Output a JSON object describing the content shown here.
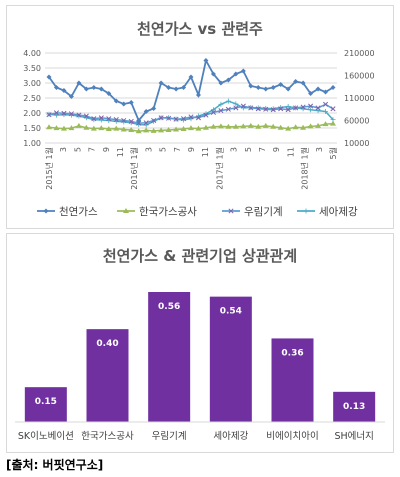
{
  "source": "[출처: 버핏연구소]",
  "colors": {
    "natural_gas": "#4f81bd",
    "korea_gas": "#9bbb59",
    "woorim": "#4bacc6",
    "seah": "#4bacc6",
    "bar": "#7030a0"
  },
  "chart_data": [
    {
      "type": "line",
      "title": "천연가스 vs 관련주",
      "x_tick_labels": [
        "2015년 1월",
        "3",
        "5",
        "7",
        "9",
        "11",
        "2016년 1월",
        "3",
        "5",
        "7",
        "9",
        "11",
        "2017년 1월",
        "3",
        "5",
        "7",
        "9",
        "11",
        "2018년 1월",
        "3",
        "5월"
      ],
      "y_left": {
        "ticks": [
          "4.00",
          "3.50",
          "3.00",
          "2.50",
          "2.00",
          "1.50",
          "1.00"
        ],
        "range": [
          1.0,
          4.0
        ]
      },
      "y_right": {
        "ticks": [
          "210000",
          "160000",
          "110000",
          "60000",
          "10000"
        ],
        "range": [
          10000,
          210000
        ]
      },
      "grid": true,
      "legend_position": "bottom",
      "series": [
        {
          "name": "천연가스",
          "axis": "left",
          "color": "#4f81bd",
          "marker": "diamond",
          "values": [
            3.2,
            2.85,
            2.75,
            2.55,
            3.0,
            2.8,
            2.85,
            2.8,
            2.65,
            2.4,
            2.3,
            2.35,
            1.75,
            2.05,
            2.15,
            3.0,
            2.85,
            2.8,
            2.85,
            3.2,
            2.6,
            3.75,
            3.3,
            3.0,
            3.1,
            3.3,
            3.4,
            2.9,
            2.85,
            2.8,
            2.85,
            2.95,
            2.8,
            3.05,
            3.0,
            2.65,
            2.8,
            2.7,
            2.85
          ]
        },
        {
          "name": "한국가스공사",
          "axis": "right",
          "color": "#9bbb59",
          "marker": "triangle",
          "values": [
            45000,
            43000,
            42000,
            43000,
            48000,
            44000,
            42000,
            43000,
            41000,
            42000,
            40000,
            39000,
            36000,
            38000,
            37000,
            38000,
            39000,
            40000,
            41000,
            43000,
            42000,
            44000,
            46000,
            47000,
            46000,
            46000,
            47000,
            48000,
            46000,
            48000,
            46000,
            44000,
            42000,
            45000,
            44000,
            47000,
            48000,
            52000,
            53000
          ]
        },
        {
          "name": "우림기계",
          "axis": "right",
          "color": "#4bacc6",
          "marker": "x",
          "values": [
            73000,
            77000,
            76000,
            75000,
            72000,
            70000,
            64000,
            66000,
            64000,
            62000,
            60000,
            58000,
            54000,
            55000,
            60000,
            66000,
            65000,
            63000,
            64000,
            68000,
            66000,
            72000,
            78000,
            82000,
            85000,
            88000,
            92000,
            88000,
            86000,
            85000,
            84000,
            86000,
            84000,
            88000,
            90000,
            92000,
            88000,
            96000,
            86000
          ]
        },
        {
          "name": "세아제강",
          "axis": "right",
          "color": "#4bacc6",
          "marker": "star",
          "values": [
            74000,
            72000,
            73000,
            72000,
            70000,
            66000,
            62000,
            61000,
            60000,
            58000,
            57000,
            55000,
            51000,
            50000,
            58000,
            66000,
            66000,
            63000,
            61000,
            64000,
            70000,
            75000,
            84000,
            96000,
            103000,
            97000,
            88000,
            89000,
            88000,
            87000,
            86000,
            89000,
            91000,
            88000,
            86000,
            84000,
            82000,
            80000,
            62000
          ]
        }
      ]
    },
    {
      "type": "bar",
      "title": "천연가스 & 관련기업 상관관계",
      "categories": [
        "SK이노베이션",
        "한국가스공사",
        "우림기계",
        "세아제강",
        "비에이치아이",
        "SH에너지"
      ],
      "values": [
        0.15,
        0.4,
        0.56,
        0.54,
        0.36,
        0.13
      ],
      "value_labels": [
        "0.15",
        "0.40",
        "0.56",
        "0.54",
        "0.36",
        "0.13"
      ],
      "grid": false
    }
  ]
}
